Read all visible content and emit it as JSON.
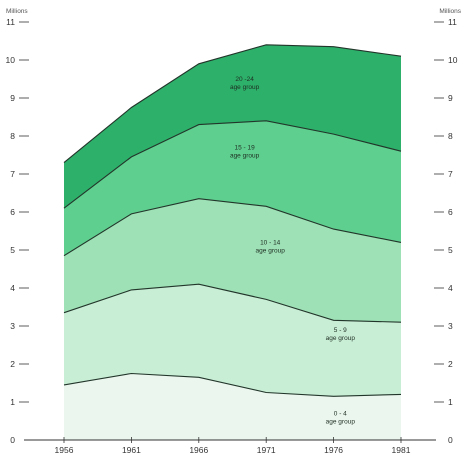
{
  "chart_data": {
    "type": "area",
    "stacked": true,
    "title": "",
    "xlabel": "",
    "ylabel": "Millions",
    "ylabel_right": "Millions",
    "x": [
      1956,
      1961,
      1966,
      1971,
      1976,
      1981
    ],
    "x_tick_labels": [
      "1956",
      "1961",
      "1966",
      "1971",
      "1976",
      "1981"
    ],
    "ylim": [
      0,
      11
    ],
    "y_ticks": [
      0,
      1,
      2,
      3,
      4,
      5,
      6,
      7,
      8,
      9,
      10,
      11
    ],
    "y_tick_labels": [
      "0",
      "1",
      "2",
      "3",
      "4",
      "5",
      "6",
      "7",
      "8",
      "9",
      "10",
      "11"
    ],
    "grid": false,
    "series": [
      {
        "name": "0 - 4 age group",
        "label_line1": "0 - 4",
        "label_line2": "age group",
        "label_pos": [
          1976.5,
          0.55
        ],
        "values": [
          1.45,
          1.75,
          1.65,
          1.25,
          1.15,
          1.2
        ],
        "color": "#eaf6ee"
      },
      {
        "name": "5 - 9 age group",
        "label_line1": "5 - 9",
        "label_line2": "age group",
        "label_pos": [
          1976.5,
          2.75
        ],
        "values": [
          1.9,
          2.2,
          2.45,
          2.45,
          2.0,
          1.9
        ],
        "color": "#c9eed6"
      },
      {
        "name": "10 - 14 age group",
        "label_line1": "10 - 14",
        "label_line2": "age group",
        "label_pos": [
          1971.3,
          5.05
        ],
        "values": [
          1.5,
          2.0,
          2.25,
          2.45,
          2.4,
          2.1
        ],
        "color": "#9ee1b6"
      },
      {
        "name": "15 - 19 age group",
        "label_line1": "15 - 19",
        "label_line2": "age group",
        "label_pos": [
          1969.4,
          7.55
        ],
        "values": [
          1.25,
          1.5,
          1.95,
          2.25,
          2.5,
          2.4
        ],
        "color": "#5fcf8f"
      },
      {
        "name": "20 - 24 age group",
        "label_line1": "20 -24",
        "label_line2": "age group",
        "label_pos": [
          1969.4,
          9.35
        ],
        "values": [
          1.2,
          1.3,
          1.6,
          2.0,
          2.3,
          2.5
        ],
        "color": "#2db06a"
      }
    ]
  }
}
